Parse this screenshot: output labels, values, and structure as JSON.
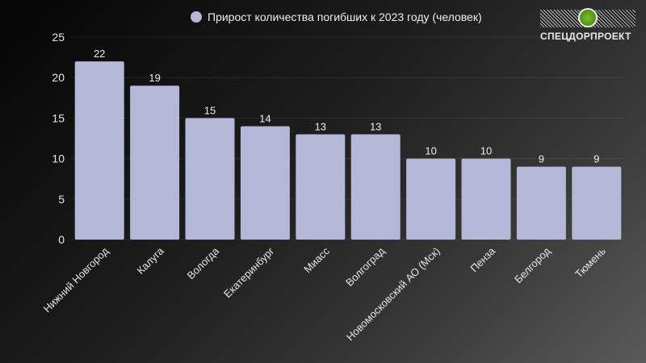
{
  "chart_data": {
    "type": "bar",
    "title": "",
    "legend": {
      "label": "Прирост количества погибших к 2023 году (человек)",
      "placement": "top-center",
      "color": "#b3b7d8"
    },
    "categories": [
      "Нижний Новгород",
      "Калуга",
      "Вологда",
      "Екатеринбург",
      "Миасс",
      "Волгоград",
      "Новомосковский АО (Мск)",
      "Пенза",
      "Белгород",
      "Тюмень"
    ],
    "values": [
      22,
      19,
      15,
      14,
      13,
      13,
      10,
      10,
      9,
      9
    ],
    "ylim": [
      0,
      25
    ],
    "yticks": [
      0,
      5,
      10,
      15,
      20,
      25
    ],
    "grid": true,
    "xlabel": "",
    "ylabel": ""
  },
  "logo": {
    "text": "СПЕЦДОРПРОЕКТ"
  }
}
